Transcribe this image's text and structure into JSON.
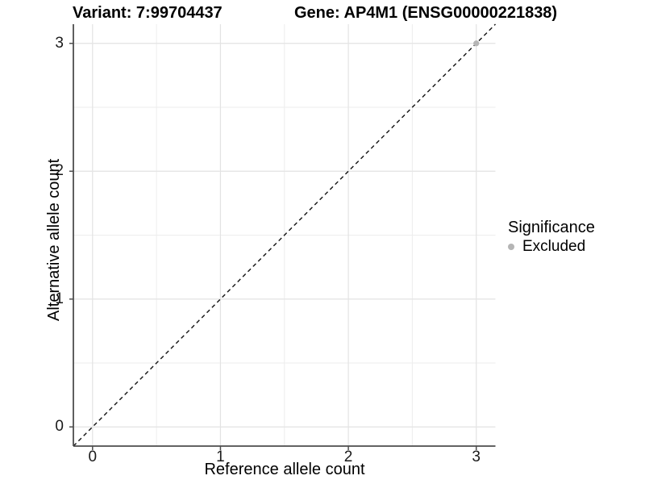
{
  "chart_data": {
    "type": "scatter",
    "title_left": "Variant: 7:99704437",
    "title_right": "Gene: AP4M1 (ENSG00000221838)",
    "xlabel": "Reference allele count",
    "ylabel": "Alternative allele count",
    "xlim": [
      -0.15,
      3.15
    ],
    "ylim": [
      -0.15,
      3.15
    ],
    "xticks": [
      0,
      1,
      2,
      3
    ],
    "yticks": [
      0,
      1,
      2,
      3
    ],
    "xticks_minor": [
      0.5,
      1.5,
      2.5
    ],
    "yticks_minor": [
      0.5,
      1.5,
      2.5
    ],
    "grid": true,
    "series": [
      {
        "name": "Excluded",
        "color": "#b5b5b5",
        "points": [
          [
            3,
            3
          ]
        ]
      }
    ],
    "reference_line": {
      "type": "abline",
      "slope": 1,
      "intercept": 0,
      "style": "dashed",
      "color": "#111111"
    },
    "legend": {
      "position": "right",
      "title": "Significance",
      "items": [
        {
          "label": "Excluded",
          "color": "#b5b5b5"
        }
      ]
    },
    "colors": {
      "grid_major": "#e3e3e3",
      "grid_minor": "#ededed",
      "axis_line": "#4d4d4d",
      "tick_mark": "#4d4d4d",
      "panel_background": "#ffffff"
    }
  }
}
